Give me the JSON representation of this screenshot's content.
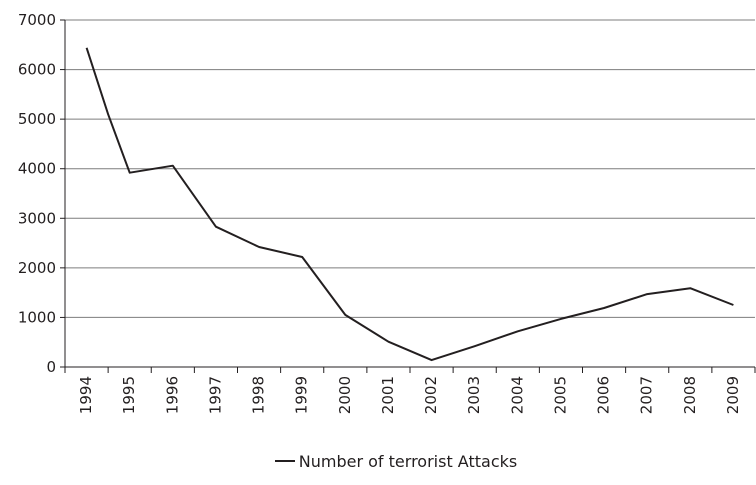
{
  "chart_data": {
    "type": "line",
    "title": "",
    "xlabel": "",
    "ylabel": "",
    "x": [
      "1994",
      "1995",
      "1996",
      "1997",
      "1998",
      "1999",
      "2000",
      "2001",
      "2002",
      "2003",
      "2004",
      "2005",
      "2006",
      "2007",
      "2008",
      "2009"
    ],
    "ylim": [
      0,
      7000
    ],
    "yticks": [
      0,
      1000,
      2000,
      3000,
      4000,
      5000,
      6000,
      7000
    ],
    "grid": "horizontal",
    "legend_position": "bottom",
    "line_color": "#231f20",
    "series": [
      {
        "name": "Number of terrorist Attacks",
        "points": [
          {
            "x": 1994.0,
            "y": 6440
          },
          {
            "x": 1994.5,
            "y": 5100
          },
          {
            "x": 1995.0,
            "y": 3920
          },
          {
            "x": 1996.0,
            "y": 4060
          },
          {
            "x": 1997.0,
            "y": 2830
          },
          {
            "x": 1998.0,
            "y": 2420
          },
          {
            "x": 1999.0,
            "y": 2220
          },
          {
            "x": 2000.0,
            "y": 1050
          },
          {
            "x": 2001.0,
            "y": 510
          },
          {
            "x": 2002.0,
            "y": 140
          },
          {
            "x": 2003.0,
            "y": 420
          },
          {
            "x": 2004.0,
            "y": 720
          },
          {
            "x": 2005.0,
            "y": 970
          },
          {
            "x": 2006.0,
            "y": 1190
          },
          {
            "x": 2007.0,
            "y": 1470
          },
          {
            "x": 2008.0,
            "y": 1590
          },
          {
            "x": 2009.0,
            "y": 1250
          }
        ]
      }
    ]
  }
}
